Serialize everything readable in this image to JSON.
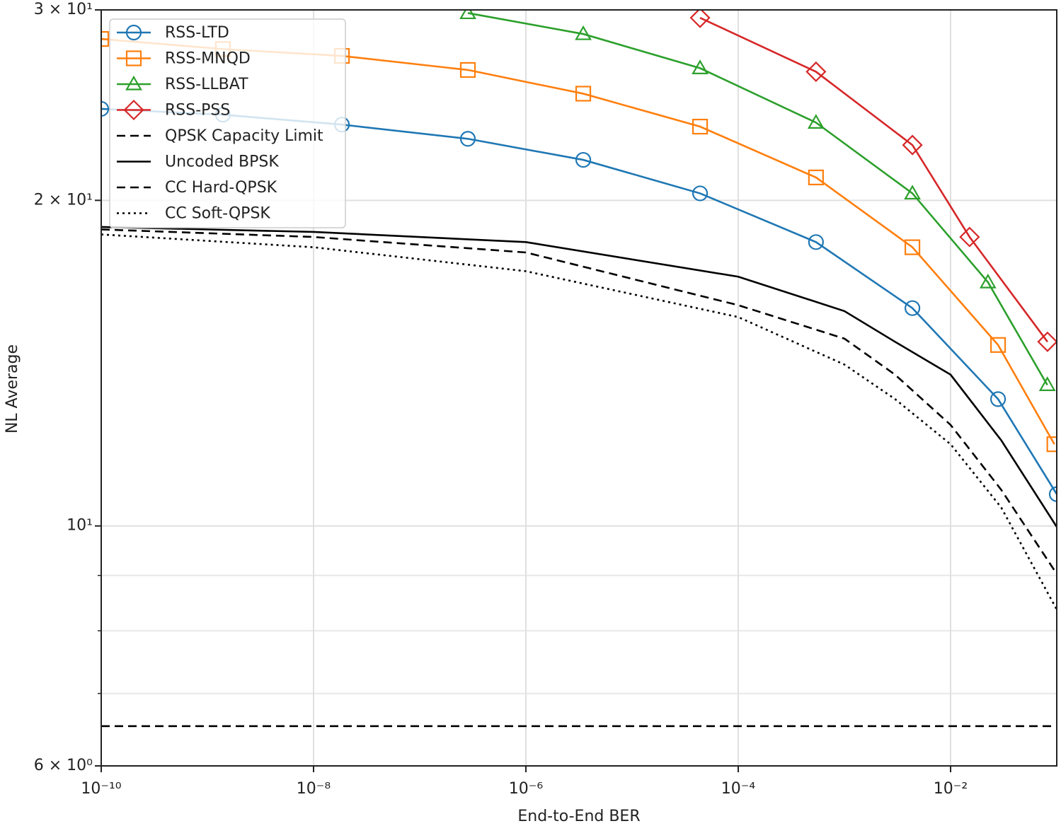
{
  "chart_data": {
    "type": "line",
    "xlabel": "End-to-End BER",
    "ylabel": "NL Average",
    "xscale": "log",
    "yscale": "log",
    "grid": true,
    "xlim": [
      1e-10,
      0.1
    ],
    "ylim": [
      6,
      30
    ],
    "xticks": [
      {
        "value": 1e-10,
        "label": "10⁻¹⁰"
      },
      {
        "value": 1e-08,
        "label": "10⁻⁸"
      },
      {
        "value": 1e-06,
        "label": "10⁻⁶"
      },
      {
        "value": 0.0001,
        "label": "10⁻⁴"
      },
      {
        "value": 0.01,
        "label": "10⁻²"
      }
    ],
    "yticks": [
      {
        "value": 6,
        "label": "6 × 10⁰"
      },
      {
        "value": 10,
        "label": "10¹"
      },
      {
        "value": 20,
        "label": "2 × 10¹"
      },
      {
        "value": 30,
        "label": "3 × 10¹"
      }
    ],
    "yminor": [
      7,
      8,
      9
    ],
    "legend": "upper left",
    "series": [
      {
        "name": "RSS-LTD",
        "color": "#1f77b4",
        "marker": "circle",
        "linestyle": "solid",
        "x": [
          1e-10,
          1.4e-09,
          1.85e-08,
          2.84e-07,
          3.47e-06,
          4.37e-05,
          0.00054,
          0.00437,
          0.028,
          0.1
        ],
        "values": [
          24.3,
          24.0,
          23.5,
          22.8,
          21.8,
          20.3,
          18.3,
          15.9,
          13.1,
          10.7
        ]
      },
      {
        "name": "RSS-MNQD",
        "color": "#ff7f0e",
        "marker": "square",
        "linestyle": "solid",
        "x": [
          1e-10,
          1.4e-09,
          1.85e-08,
          2.84e-07,
          3.47e-06,
          4.37e-05,
          0.00054,
          0.00437,
          0.028,
          0.095
        ],
        "values": [
          28.2,
          27.6,
          27.2,
          26.4,
          25.1,
          23.4,
          21.0,
          18.1,
          14.7,
          11.9
        ]
      },
      {
        "name": "RSS-LLBAT",
        "color": "#2ca02c",
        "marker": "triangle",
        "linestyle": "solid",
        "x": [
          2.84e-07,
          3.47e-06,
          4.37e-05,
          0.00054,
          0.00437,
          0.0225,
          0.0815
        ],
        "values": [
          29.8,
          28.5,
          26.5,
          23.6,
          20.3,
          16.8,
          13.5
        ]
      },
      {
        "name": "RSS-PSS",
        "color": "#d62728",
        "marker": "diamond",
        "linestyle": "solid",
        "x": [
          4.37e-05,
          0.00054,
          0.00437,
          0.0151,
          0.0818
        ],
        "values": [
          29.5,
          26.3,
          22.5,
          18.5,
          14.8
        ]
      },
      {
        "name": "QPSK Capacity Limit",
        "color": "#000000",
        "linestyle": "dashed",
        "x": [
          1e-10,
          0.1
        ],
        "values": [
          6.53,
          6.53
        ]
      },
      {
        "name": "Uncoded BPSK",
        "color": "#000000",
        "linestyle": "solid",
        "x": [
          1e-10,
          1e-08,
          1e-06,
          0.0001,
          0.001,
          0.003,
          0.01,
          0.03,
          0.1
        ],
        "values": [
          18.9,
          18.7,
          18.3,
          17.0,
          15.8,
          14.8,
          13.8,
          12.0,
          9.98
        ]
      },
      {
        "name": "CC Hard-QPSK",
        "color": "#000000",
        "linestyle": "dashed",
        "x": [
          1e-10,
          1e-08,
          1e-06,
          0.0001,
          0.001,
          0.003,
          0.01,
          0.03,
          0.1
        ],
        "values": [
          18.8,
          18.5,
          17.9,
          16.0,
          14.9,
          13.8,
          12.4,
          10.8,
          9.03
        ]
      },
      {
        "name": "CC Soft-QPSK",
        "color": "#000000",
        "linestyle": "dotted",
        "x": [
          1e-10,
          1e-08,
          1e-06,
          0.0001,
          0.001,
          0.003,
          0.01,
          0.03,
          0.1
        ],
        "values": [
          18.6,
          18.1,
          17.2,
          15.6,
          14.1,
          13.1,
          11.9,
          10.4,
          8.37
        ]
      }
    ]
  }
}
